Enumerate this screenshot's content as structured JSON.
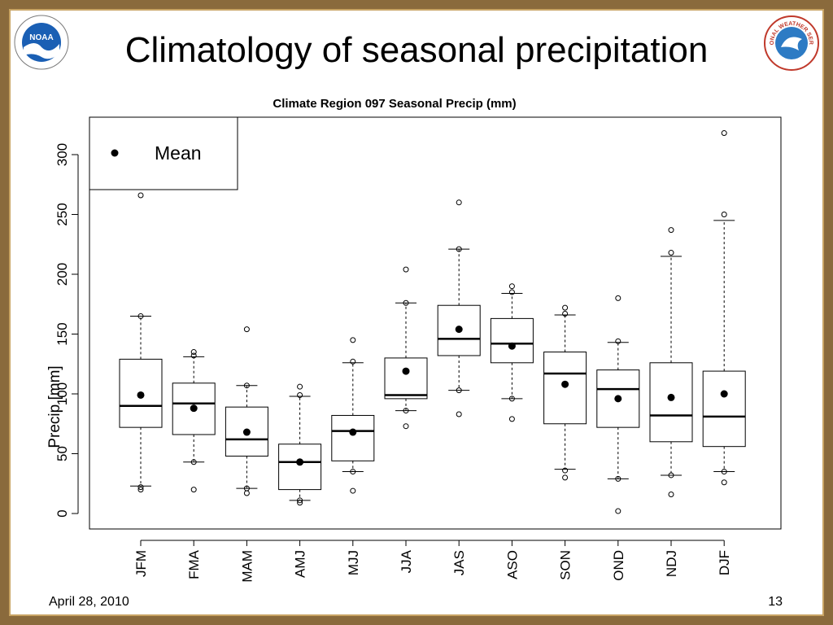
{
  "slide": {
    "title": "Climatology of seasonal precipitation",
    "date": "April 28, 2010",
    "page_number": "13",
    "left_logo": {
      "icon": "noaa-logo-icon",
      "text": "NOAA",
      "color": "#1a5fb4"
    },
    "right_logo": {
      "icon": "national-weather-service-logo-icon",
      "text": "NATIONAL WEATHER SERVICE",
      "color": "#c0392b"
    },
    "frame_color": "#8a6a3c"
  },
  "chart_data": {
    "type": "box",
    "title": "Climate Region 097 Seasonal Precip (mm)",
    "ylabel": "Precip [mm]",
    "xlabel": "",
    "ylim": [
      0,
      320
    ],
    "yticks": [
      0,
      50,
      100,
      150,
      200,
      250,
      300
    ],
    "legend": {
      "position": "top-left",
      "label": "Mean"
    },
    "categories": [
      "JFM",
      "FMA",
      "MAM",
      "AMJ",
      "MJJ",
      "JJA",
      "JAS",
      "ASO",
      "SON",
      "OND",
      "NDJ",
      "DJF"
    ],
    "boxes": [
      {
        "q1": 72,
        "median": 90,
        "q3": 129,
        "whisker_low": 23,
        "whisker_high": 165,
        "mean": 99,
        "outliers": [
          20,
          22,
          165,
          266
        ]
      },
      {
        "q1": 66,
        "median": 92,
        "q3": 109,
        "whisker_low": 43,
        "whisker_high": 131,
        "mean": 88,
        "outliers": [
          20,
          43,
          132,
          135
        ]
      },
      {
        "q1": 48,
        "median": 62,
        "q3": 89,
        "whisker_low": 21,
        "whisker_high": 107,
        "mean": 68,
        "outliers": [
          17,
          21,
          107,
          154
        ]
      },
      {
        "q1": 20,
        "median": 43,
        "q3": 58,
        "whisker_low": 11,
        "whisker_high": 98,
        "mean": 43,
        "outliers": [
          9,
          11,
          99,
          106
        ]
      },
      {
        "q1": 44,
        "median": 69,
        "q3": 82,
        "whisker_low": 35,
        "whisker_high": 126,
        "mean": 68,
        "outliers": [
          19,
          35,
          127,
          145
        ]
      },
      {
        "q1": 96,
        "median": 99,
        "q3": 130,
        "whisker_low": 86,
        "whisker_high": 176,
        "mean": 119,
        "outliers": [
          73,
          86,
          176,
          204
        ]
      },
      {
        "q1": 132,
        "median": 146,
        "q3": 174,
        "whisker_low": 103,
        "whisker_high": 221,
        "mean": 154,
        "outliers": [
          83,
          103,
          221,
          260
        ]
      },
      {
        "q1": 126,
        "median": 142,
        "q3": 163,
        "whisker_low": 96,
        "whisker_high": 184,
        "mean": 140,
        "outliers": [
          79,
          96,
          185,
          190
        ]
      },
      {
        "q1": 75,
        "median": 117,
        "q3": 135,
        "whisker_low": 37,
        "whisker_high": 166,
        "mean": 108,
        "outliers": [
          30,
          36,
          167,
          172
        ]
      },
      {
        "q1": 72,
        "median": 104,
        "q3": 120,
        "whisker_low": 29,
        "whisker_high": 143,
        "mean": 96,
        "outliers": [
          2,
          29,
          144,
          180
        ]
      },
      {
        "q1": 60,
        "median": 82,
        "q3": 126,
        "whisker_low": 32,
        "whisker_high": 215,
        "mean": 97,
        "outliers": [
          16,
          32,
          218,
          237
        ]
      },
      {
        "q1": 56,
        "median": 81,
        "q3": 119,
        "whisker_low": 35,
        "whisker_high": 245,
        "mean": 100,
        "outliers": [
          26,
          35,
          250,
          318
        ]
      }
    ]
  }
}
